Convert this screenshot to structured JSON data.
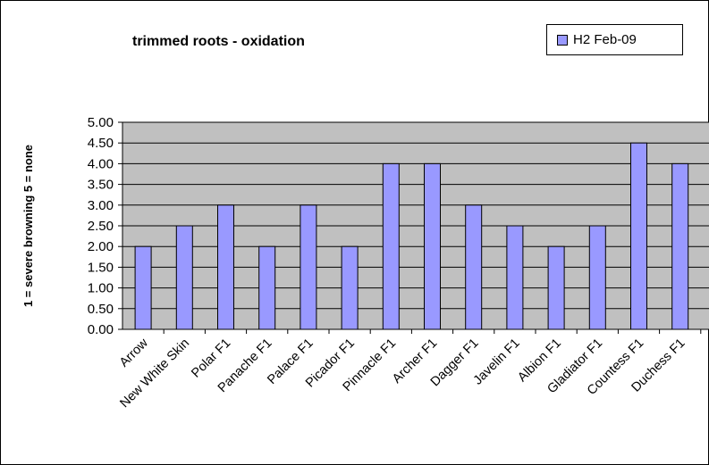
{
  "chart_data": {
    "type": "bar",
    "title": "trimmed roots - oxidation",
    "ylabel": "1 = severe browning   5 = none",
    "xlabel": "",
    "ylim": [
      0,
      5
    ],
    "ytick_step": 0.5,
    "yticks": [
      "0.00",
      "0.50",
      "1.00",
      "1.50",
      "2.00",
      "2.50",
      "3.00",
      "3.50",
      "4.00",
      "4.50",
      "5.00"
    ],
    "categories": [
      "Arrow",
      "New White Skin",
      "Polar F1",
      "Panache F1",
      "Palace F1",
      "Picador F1",
      "Pinnacle F1",
      "Archer F1",
      "Dagger F1",
      "Javelin F1",
      "Albion F1",
      "Gladiator F1",
      "Countess F1",
      "Duchess F1"
    ],
    "series": [
      {
        "name": "H2 Feb-09",
        "values": [
          2.0,
          2.5,
          3.0,
          2.0,
          3.0,
          2.0,
          4.0,
          4.0,
          3.0,
          2.5,
          2.0,
          2.5,
          4.5,
          4.0
        ]
      }
    ],
    "legend_position": "top-right",
    "grid": true,
    "colors": {
      "bar": "#9999ff",
      "plot_background": "#c0c0c0",
      "gridline": "#000000"
    }
  }
}
